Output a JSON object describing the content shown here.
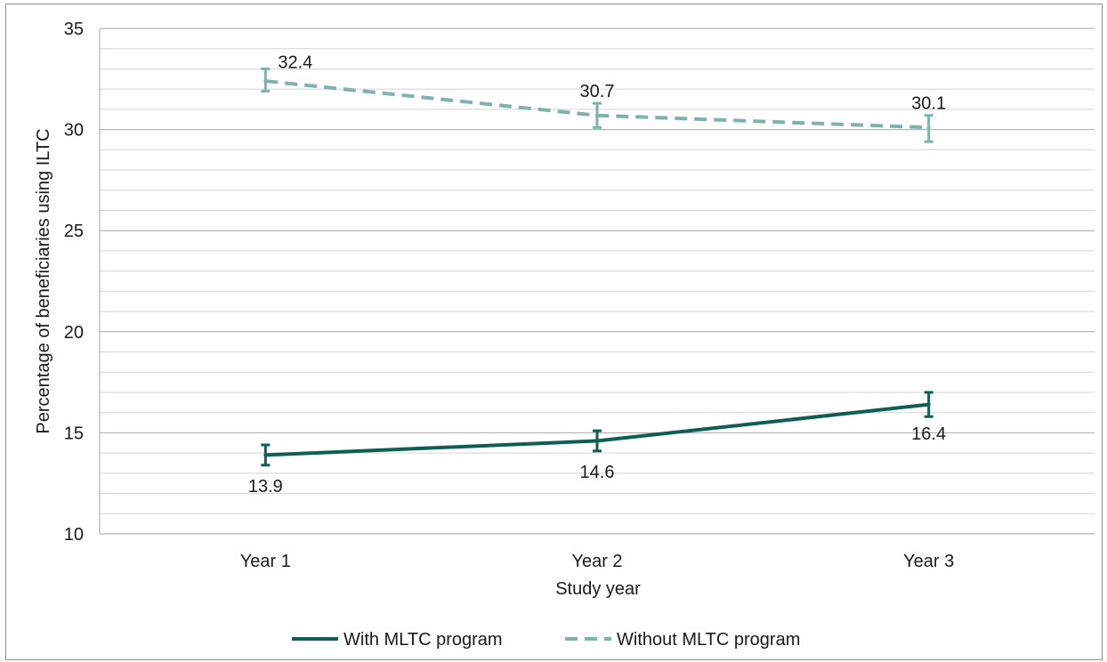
{
  "chart_data": {
    "type": "line",
    "categories": [
      "Year 1",
      "Year 2",
      "Year 3"
    ],
    "xlabel": "Study year",
    "ylabel": "Percentage of beneficiaries using ILTC",
    "ylim": [
      10,
      35
    ],
    "yticks": [
      "10",
      "15",
      "20",
      "25",
      "30",
      "35"
    ],
    "grid": true,
    "legend_position": "bottom",
    "series": [
      {
        "name": "With MLTC program",
        "values": [
          13.9,
          14.6,
          16.4
        ],
        "labels": [
          "13.9",
          "14.6",
          "16.4"
        ],
        "error_low": [
          13.4,
          14.1,
          15.8
        ],
        "error_high": [
          14.4,
          15.1,
          17.0
        ],
        "color": "#0f5e52",
        "style": "solid"
      },
      {
        "name": "Without MLTC program",
        "values": [
          32.4,
          30.7,
          30.1
        ],
        "labels": [
          "32.4",
          "30.7",
          "30.1"
        ],
        "error_low": [
          31.9,
          30.1,
          29.4
        ],
        "error_high": [
          33.0,
          31.3,
          30.7
        ],
        "color": "#7fb2ab",
        "style": "dashed"
      }
    ]
  }
}
